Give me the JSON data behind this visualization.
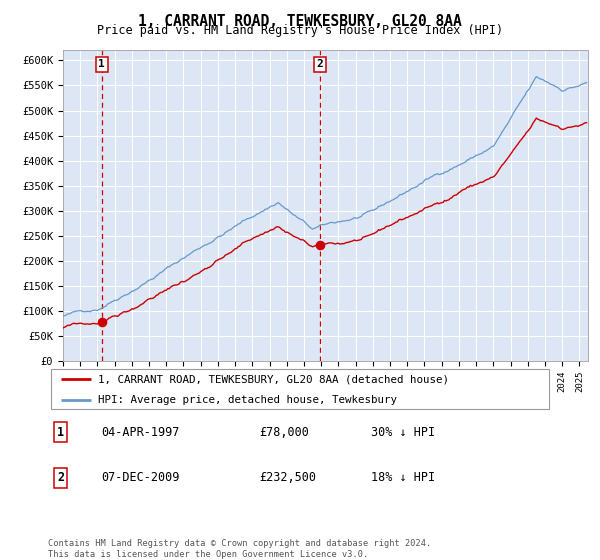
{
  "title": "1, CARRANT ROAD, TEWKESBURY, GL20 8AA",
  "subtitle": "Price paid vs. HM Land Registry's House Price Index (HPI)",
  "background_color": "#dce6f5",
  "plot_bg_color": "#dce6f5",
  "ylim": [
    0,
    620000
  ],
  "yticks": [
    0,
    50000,
    100000,
    150000,
    200000,
    250000,
    300000,
    350000,
    400000,
    450000,
    500000,
    550000,
    600000
  ],
  "ytick_labels": [
    "£0",
    "£50K",
    "£100K",
    "£150K",
    "£200K",
    "£250K",
    "£300K",
    "£350K",
    "£400K",
    "£450K",
    "£500K",
    "£550K",
    "£600K"
  ],
  "sale1_date": 1997.25,
  "sale1_price": 78000,
  "sale1_label": "1",
  "sale2_date": 2009.92,
  "sale2_price": 232500,
  "sale2_label": "2",
  "legend_line1": "1, CARRANT ROAD, TEWKESBURY, GL20 8AA (detached house)",
  "legend_line2": "HPI: Average price, detached house, Tewkesbury",
  "table_rows": [
    {
      "num": "1",
      "date": "04-APR-1997",
      "price": "£78,000",
      "note": "30% ↓ HPI"
    },
    {
      "num": "2",
      "date": "07-DEC-2009",
      "price": "£232,500",
      "note": "18% ↓ HPI"
    }
  ],
  "footer": "Contains HM Land Registry data © Crown copyright and database right 2024.\nThis data is licensed under the Open Government Licence v3.0.",
  "hpi_color": "#6699cc",
  "price_color": "#cc0000",
  "vline_color": "#cc0000",
  "grid_color": "#ffffff",
  "xlim_start": 1995.0,
  "xlim_end": 2025.5,
  "fig_width": 6.0,
  "fig_height": 5.6,
  "dpi": 100
}
